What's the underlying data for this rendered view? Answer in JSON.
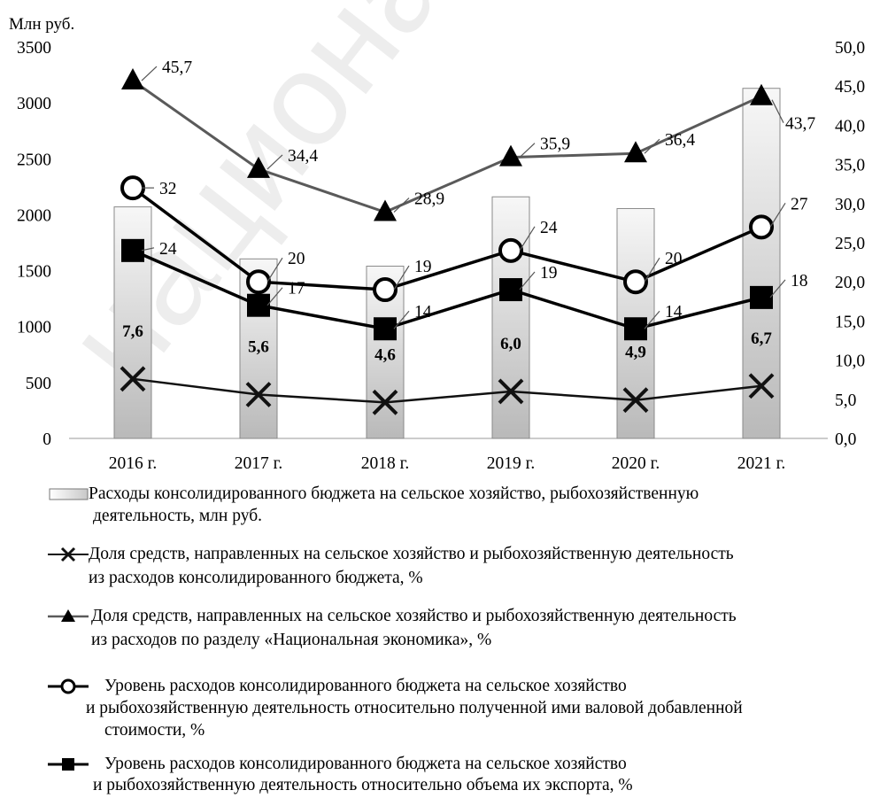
{
  "chart_data": {
    "type": "bar",
    "left_axis_title": "Млн руб.",
    "categories": [
      "2016 г.",
      "2017 г.",
      "2018 г.",
      "2019 г.",
      "2020 г.",
      "2021 г."
    ],
    "left_axis": {
      "ylim": [
        0,
        3500
      ],
      "ticks": [
        "0",
        "500",
        "1000",
        "1500",
        "2000",
        "2500",
        "3000",
        "3500"
      ]
    },
    "right_axis": {
      "ylim": [
        0,
        50
      ],
      "ticks": [
        "0,0",
        "5,0",
        "10,0",
        "15,0",
        "20,0",
        "25,0",
        "30,0",
        "35,0",
        "40,0",
        "45,0",
        "50,0"
      ]
    },
    "grid": false,
    "bars": {
      "name": "Расходы консолидированного бюджета на сельское хозяйство, рыбохозяйственную деятельность, млн руб.",
      "axis": "left",
      "values": [
        2070,
        1605,
        1540,
        2160,
        2055,
        3130
      ]
    },
    "series": [
      {
        "name": "Доля средств, направленных на сельское хозяйство и рыбохозяйственную деятельность из расходов консолидированного бюджета, %",
        "axis": "right",
        "marker": "x",
        "color": "#111111",
        "values": [
          7.6,
          5.6,
          4.6,
          6.0,
          4.9,
          6.7
        ],
        "labels": [
          "7,6",
          "5,6",
          "4,6",
          "6,0",
          "4,9",
          "6,7"
        ]
      },
      {
        "name": "Доля средств, направленных на сельское хозяйство и рыбохозяйственную деятельность из расходов по разделу «Национальная экономика», %",
        "axis": "right",
        "marker": "triangle",
        "color": "#5a5a5a",
        "values": [
          45.7,
          34.4,
          28.9,
          35.9,
          36.4,
          43.7
        ],
        "labels": [
          "45,7",
          "34,4",
          "28,9",
          "35,9",
          "36,4",
          "43,7"
        ]
      },
      {
        "name": "Уровень расходов консолидированного бюджета на сельское хозяйство и рыбохозяйственную деятельность относительно полученной ими валовой добавленной стоимости, %",
        "axis": "right",
        "marker": "circle",
        "color": "#000000",
        "values": [
          32,
          20,
          19,
          24,
          20,
          27
        ],
        "labels": [
          "32",
          "20",
          "19",
          "24",
          "20",
          "27"
        ]
      },
      {
        "name": "Уровень расходов консолидированного бюджета на сельское хозяйство и рыбохозяйственную деятельность относительно объема их экспорта, %",
        "axis": "right",
        "marker": "square",
        "color": "#000000",
        "values": [
          24,
          17,
          14,
          19,
          14,
          18
        ],
        "labels": [
          "24",
          "17",
          "14",
          "19",
          "14",
          "18"
        ]
      }
    ],
    "legend": {
      "position": "bottom",
      "items": [
        {
          "key": "bars",
          "line1": "Расходы консолидированного бюджета на сельское хозяйство, рыбохозяйственную",
          "line2": "деятельность, млн руб.",
          "line3": ""
        },
        {
          "key": "x",
          "line1": "Доля средств, направленных на сельское хозяйство и рыбохозяйственную деятельность",
          "line2": "из расходов консолидированного бюджета, %",
          "line3": ""
        },
        {
          "key": "triangle",
          "line1": "Доля средств, направленных на сельское хозяйство и рыбохозяйственную деятельность",
          "line2": "из расходов по разделу «Национальная экономика», %",
          "line3": ""
        },
        {
          "key": "circle",
          "line1": "Уровень расходов консолидированного бюджета  на сельское хозяйство",
          "line2": "и рыбохозяйственную деятельность относительно полученной ими валовой добавленной",
          "line3": "стоимости, %"
        },
        {
          "key": "square",
          "line1": "Уровень расходов консолидированного бюджета  на сельское хозяйство",
          "line2": "и рыбохозяйственную деятельность относительно объема их экспорта, %",
          "line3": ""
        }
      ]
    }
  },
  "watermark": {
    "text": "национальная академия на",
    "color": "#000000"
  }
}
